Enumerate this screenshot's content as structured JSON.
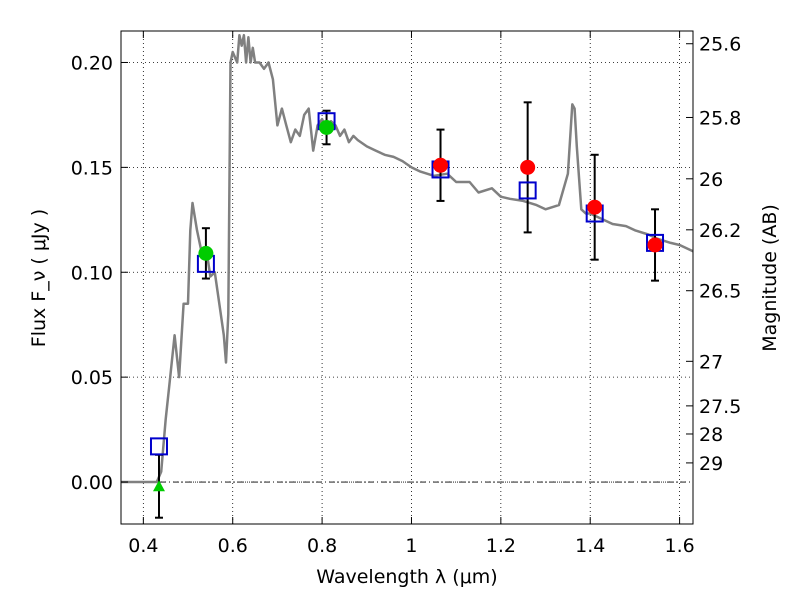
{
  "chart_data": {
    "type": "scatter",
    "xlabel": "Wavelength  λ (μm)",
    "ylabel": "Flux  F_ν  ( μJy )",
    "ylabel_right": "Magnitude (AB)",
    "xlim": [
      0.35,
      1.63
    ],
    "ylim": [
      -0.02,
      0.215
    ],
    "grid": true,
    "x_ticks": [
      0.4,
      0.6,
      0.8,
      1.0,
      1.2,
      1.4,
      1.6
    ],
    "x_tick_labels": [
      "0.4",
      "0.6",
      "0.8",
      "1",
      "1.2",
      "1.4",
      "1.6"
    ],
    "y_ticks": [
      0.0,
      0.05,
      0.1,
      0.15,
      0.2
    ],
    "y_tick_labels": [
      "0.00",
      "0.05",
      "0.10",
      "0.15",
      "0.20"
    ],
    "mag_ticks": [
      25.6,
      25.8,
      26,
      26.2,
      26.5,
      27,
      27.5,
      28,
      29
    ],
    "mag_tick_labels": [
      "25.6",
      "25.8",
      "26",
      "26.2",
      "26.5",
      "27",
      "27.5",
      "28",
      "29"
    ],
    "zero_line": 0.0,
    "colors": {
      "model": "#808080",
      "open_squares": "#0000cc",
      "red_points": "#ff0000",
      "green_points": "#00cc00",
      "errorbars": "#000000"
    },
    "series": [
      {
        "kind": "model_spectrum",
        "x": [
          0.35,
          0.43,
          0.44,
          0.45,
          0.46,
          0.47,
          0.48,
          0.49,
          0.5,
          0.505,
          0.51,
          0.52,
          0.53,
          0.54,
          0.55,
          0.56,
          0.57,
          0.58,
          0.585,
          0.59,
          0.595,
          0.6,
          0.61,
          0.615,
          0.62,
          0.625,
          0.63,
          0.635,
          0.64,
          0.645,
          0.65,
          0.66,
          0.67,
          0.68,
          0.69,
          0.7,
          0.71,
          0.72,
          0.73,
          0.74,
          0.75,
          0.76,
          0.77,
          0.78,
          0.79,
          0.8,
          0.81,
          0.82,
          0.83,
          0.84,
          0.85,
          0.86,
          0.87,
          0.88,
          0.9,
          0.92,
          0.94,
          0.96,
          0.98,
          1.0,
          1.02,
          1.05,
          1.08,
          1.1,
          1.13,
          1.15,
          1.18,
          1.2,
          1.22,
          1.25,
          1.28,
          1.3,
          1.33,
          1.35,
          1.36,
          1.365,
          1.37,
          1.38,
          1.39,
          1.4,
          1.42,
          1.45,
          1.48,
          1.5,
          1.53,
          1.55,
          1.58,
          1.6,
          1.63
        ],
        "y": [
          0.0,
          0.0,
          0.005,
          0.03,
          0.05,
          0.07,
          0.05,
          0.085,
          0.085,
          0.12,
          0.133,
          0.12,
          0.11,
          0.112,
          0.098,
          0.1,
          0.085,
          0.07,
          0.057,
          0.08,
          0.2,
          0.205,
          0.2,
          0.213,
          0.208,
          0.213,
          0.2,
          0.212,
          0.2,
          0.207,
          0.2,
          0.2,
          0.197,
          0.2,
          0.192,
          0.17,
          0.178,
          0.17,
          0.162,
          0.168,
          0.165,
          0.175,
          0.178,
          0.158,
          0.17,
          0.173,
          0.167,
          0.172,
          0.17,
          0.165,
          0.168,
          0.162,
          0.165,
          0.163,
          0.16,
          0.158,
          0.156,
          0.155,
          0.153,
          0.15,
          0.148,
          0.146,
          0.147,
          0.143,
          0.143,
          0.138,
          0.14,
          0.136,
          0.135,
          0.134,
          0.132,
          0.13,
          0.132,
          0.147,
          0.18,
          0.178,
          0.16,
          0.13,
          0.128,
          0.128,
          0.126,
          0.123,
          0.122,
          0.12,
          0.118,
          0.116,
          0.114,
          0.113,
          0.11
        ]
      },
      {
        "kind": "open_squares",
        "x": [
          0.435,
          0.54,
          0.81,
          1.065,
          1.26,
          1.41,
          1.545
        ],
        "y": [
          0.017,
          0.104,
          0.172,
          0.149,
          0.139,
          0.128,
          0.114
        ]
      },
      {
        "kind": "red_points",
        "x": [
          1.065,
          1.26,
          1.41,
          1.545
        ],
        "y": [
          0.151,
          0.15,
          0.131,
          0.113
        ],
        "yerr": [
          0.017,
          0.031,
          0.025,
          0.017
        ]
      },
      {
        "kind": "green_points",
        "x": [
          0.54,
          0.81
        ],
        "y": [
          0.109,
          0.169
        ],
        "yerr": [
          0.012,
          0.008
        ]
      },
      {
        "kind": "upper_limit",
        "x": [
          0.435
        ],
        "y": [
          -0.002
        ],
        "yerr": [
          0.015
        ]
      }
    ]
  }
}
